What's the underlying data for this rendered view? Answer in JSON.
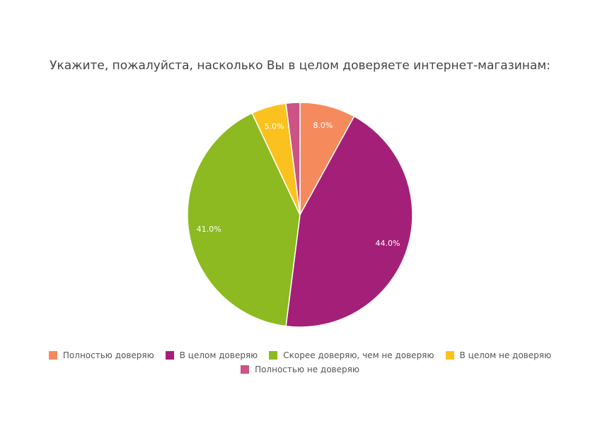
{
  "chart_data": {
    "type": "pie",
    "title": "Укажите, пожалуйста, насколько Вы в целом доверяете интернет-магазинам:",
    "slices": [
      {
        "name": "Полностью доверяю",
        "value": 8.0,
        "label": "8.0%",
        "color": "#f58b5d"
      },
      {
        "name": "В целом доверяю",
        "value": 44.0,
        "label": "44.0%",
        "color": "#a41f77"
      },
      {
        "name": "Скорее доверяю, чем не доверяю",
        "value": 41.0,
        "label": "41.0%",
        "color": "#8cba20"
      },
      {
        "name": "В целом не доверяю",
        "value": 5.0,
        "label": "5.0%",
        "color": "#fbc21f"
      },
      {
        "name": "Полностью не доверяю",
        "value": 2.0,
        "label": "",
        "color": "#cb5386"
      }
    ],
    "legend_position": "bottom"
  }
}
